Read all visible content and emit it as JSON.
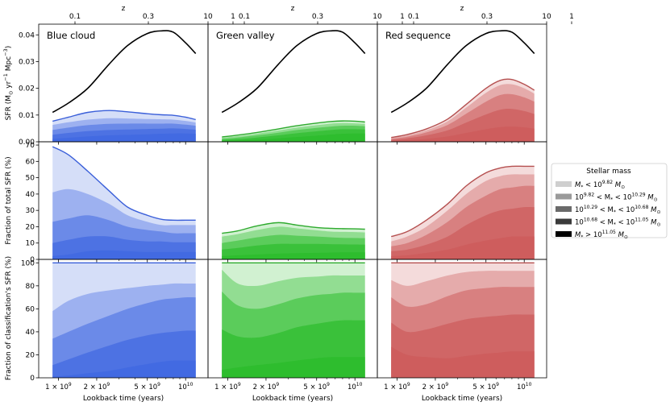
{
  "chart_data": {
    "type": "area",
    "figure": "Star formation history by classification and stellar mass",
    "x_axis": {
      "label": "Lookback time (years)",
      "scale": "log",
      "range": [
        700000000,
        15000000000
      ],
      "ticks": [
        1000000000,
        2000000000,
        5000000000,
        10000000000
      ],
      "tick_labels": [
        {
          "base": "1 × 10",
          "exp": "9"
        },
        {
          "base": "2 × 10",
          "exp": "9"
        },
        {
          "base": "5 × 10",
          "exp": "9"
        },
        {
          "base": "10",
          "exp": "10"
        }
      ]
    },
    "top_axis": {
      "label": "z",
      "ticks": [
        0.1,
        0.3,
        1,
        10
      ],
      "tick_labels": [
        "0.1",
        "0.3",
        "1",
        "10"
      ]
    },
    "x_grid": [
      900000000.0,
      1200000000.0,
      1700000000.0,
      2500000000.0,
      3500000000.0,
      5000000000.0,
      6500000000.0,
      8000000000.0,
      10000000000.0,
      12000000000.0
    ],
    "columns": [
      {
        "title": "Blue cloud",
        "fill": "#4169e1",
        "line": "#3a5fd9"
      },
      {
        "title": "Green valley",
        "fill": "#2ebd2e",
        "line": "#2eaa2e"
      },
      {
        "title": "Red sequence",
        "fill": "#cd5c5c",
        "line": "#b55050"
      }
    ],
    "rows": [
      {
        "ylabel_main": "SFR (M",
        "ylabel_sub": "⊙",
        "ylabel_rest": " yr",
        "ylabel_sup": "−1",
        "ylabel_end": " Mpc",
        "ylabel_sup2": "−3",
        "ylabel_close": ")",
        "ylim": [
          0,
          0.044
        ],
        "ticks": [
          0,
          0.01,
          0.02,
          0.03,
          0.04
        ],
        "tick_labels": [
          "0.00",
          "0.01",
          "0.02",
          "0.03",
          "0.04"
        ]
      },
      {
        "ylabel_main": "Fraction of total SFR (%)",
        "ylim": [
          0,
          72
        ],
        "ticks": [
          0,
          10,
          20,
          30,
          40,
          50,
          60,
          70
        ],
        "tick_labels": [
          "0",
          "10",
          "20",
          "30",
          "40",
          "50",
          "60",
          "70"
        ]
      },
      {
        "ylabel_main": "Fraction of classification's SFR (%)",
        "ylim": [
          0,
          103
        ],
        "ticks": [
          0,
          20,
          40,
          60,
          80,
          100
        ],
        "tick_labels": [
          "0",
          "20",
          "40",
          "60",
          "80",
          "100"
        ]
      }
    ],
    "cosmic_sfr": [
      0.011,
      0.0145,
      0.02,
      0.029,
      0.036,
      0.0405,
      0.0415,
      0.041,
      0.037,
      0.033
    ],
    "panels": [
      {
        "row": 0,
        "col": 0,
        "total": [
          0.0077,
          0.0092,
          0.011,
          0.0117,
          0.0112,
          0.0105,
          0.0101,
          0.0099,
          0.0092,
          0.0083
        ],
        "bands": [
          [
            0.0063,
            0.0073,
            0.0083,
            0.0088,
            0.0087,
            0.0085,
            0.0084,
            0.0083,
            0.0078,
            0.0072
          ],
          [
            0.0044,
            0.0053,
            0.0062,
            0.0067,
            0.0068,
            0.0068,
            0.0068,
            0.0068,
            0.0064,
            0.006
          ],
          [
            0.0026,
            0.0033,
            0.004,
            0.0044,
            0.0046,
            0.0048,
            0.0049,
            0.005,
            0.0048,
            0.0045
          ],
          [
            0.0011,
            0.0015,
            0.002,
            0.0024,
            0.0026,
            0.0028,
            0.003,
            0.0031,
            0.0031,
            0.003
          ]
        ]
      },
      {
        "row": 0,
        "col": 1,
        "total": [
          0.0018,
          0.0025,
          0.0035,
          0.0048,
          0.006,
          0.007,
          0.0076,
          0.0078,
          0.0077,
          0.0074
        ],
        "bands": [
          [
            0.0015,
            0.0021,
            0.003,
            0.0042,
            0.0053,
            0.0062,
            0.0068,
            0.007,
            0.0069,
            0.0067
          ],
          [
            0.0011,
            0.0016,
            0.0024,
            0.0034,
            0.0044,
            0.0052,
            0.0057,
            0.006,
            0.006,
            0.0058
          ],
          [
            0.0007,
            0.001,
            0.0016,
            0.0024,
            0.0032,
            0.0039,
            0.0044,
            0.0047,
            0.0047,
            0.0046
          ],
          [
            0.0003,
            0.0005,
            0.0008,
            0.0013,
            0.0018,
            0.0023,
            0.0027,
            0.003,
            0.0031,
            0.0031
          ]
        ]
      },
      {
        "row": 0,
        "col": 2,
        "total": [
          0.0016,
          0.0027,
          0.0048,
          0.0085,
          0.014,
          0.02,
          0.023,
          0.0233,
          0.0215,
          0.0193
        ],
        "bands": [
          [
            0.0014,
            0.0024,
            0.0043,
            0.0077,
            0.0128,
            0.0183,
            0.0212,
            0.0215,
            0.02,
            0.018
          ],
          [
            0.0011,
            0.0019,
            0.0035,
            0.0063,
            0.0105,
            0.015,
            0.0175,
            0.0178,
            0.0166,
            0.015
          ],
          [
            0.0007,
            0.0013,
            0.0024,
            0.0043,
            0.0072,
            0.0102,
            0.012,
            0.0123,
            0.0115,
            0.0104
          ],
          [
            0.0003,
            0.0006,
            0.0011,
            0.002,
            0.0033,
            0.0047,
            0.0055,
            0.0057,
            0.0054,
            0.0049
          ]
        ]
      },
      {
        "row": 1,
        "col": 0,
        "total": [
          69,
          64,
          54,
          42,
          32,
          27,
          24.5,
          24,
          24,
          24
        ],
        "bands": [
          [
            41,
            43,
            40,
            34,
            27,
            23,
            21,
            21,
            21,
            21
          ],
          [
            23,
            25,
            27,
            24,
            20,
            18,
            17,
            16,
            16,
            16
          ],
          [
            10,
            12,
            14,
            14,
            12,
            11,
            11,
            10.5,
            10.5,
            10.5
          ],
          [
            2,
            3,
            5,
            5.5,
            5,
            4.5,
            4.5,
            4.5,
            4.5,
            4.5
          ]
        ]
      },
      {
        "row": 1,
        "col": 1,
        "total": [
          16,
          17.5,
          20.5,
          22.5,
          21,
          19.5,
          19,
          18.8,
          18.7,
          18.5
        ],
        "bands": [
          [
            14,
            15.5,
            18,
            20,
            19,
            17.8,
            17,
            16.8,
            16.7,
            16.5
          ],
          [
            10,
            11.5,
            13.5,
            15,
            14.5,
            14,
            13.5,
            13.2,
            13.1,
            13
          ],
          [
            6,
            7,
            8.5,
            9.5,
            9.5,
            9.5,
            9.3,
            9.2,
            9.1,
            9
          ],
          [
            2,
            2.5,
            3,
            3.5,
            3.8,
            4,
            4.2,
            4.3,
            4.3,
            4.3
          ]
        ]
      },
      {
        "row": 1,
        "col": 2,
        "total": [
          14,
          17,
          24,
          34,
          45,
          53,
          56,
          57,
          57,
          57
        ],
        "bands": [
          [
            11,
            14,
            20,
            30,
            40,
            48,
            51,
            52,
            52,
            52
          ],
          [
            8,
            10,
            15,
            23,
            32,
            39,
            43,
            44,
            45,
            45
          ],
          [
            5,
            6,
            9,
            14,
            21,
            27,
            30,
            31,
            32,
            32
          ],
          [
            2,
            2.5,
            4,
            6,
            9,
            11.5,
            13,
            14,
            14,
            14
          ]
        ]
      },
      {
        "row": 2,
        "col": 0,
        "total": [
          100,
          100,
          100,
          100,
          100,
          100,
          100,
          100,
          100,
          100
        ],
        "bands": [
          [
            58,
            67,
            73,
            76,
            78,
            80,
            81,
            82,
            82,
            82
          ],
          [
            34,
            40,
            47,
            54,
            60,
            65,
            68,
            69,
            70,
            70
          ],
          [
            11,
            16,
            22,
            28,
            33,
            37,
            39,
            40,
            41,
            41
          ],
          [
            1,
            2,
            4,
            6,
            9,
            12,
            14,
            15,
            15,
            15
          ]
        ]
      },
      {
        "row": 2,
        "col": 1,
        "total": [
          100,
          100,
          100,
          100,
          100,
          100,
          100,
          100,
          100,
          100
        ],
        "bands": [
          [
            94,
            82,
            80,
            84,
            87,
            88,
            89,
            89,
            89,
            89
          ],
          [
            75,
            63,
            60,
            64,
            69,
            72,
            73,
            74,
            74,
            74
          ],
          [
            42,
            36,
            35,
            39,
            44,
            47,
            49,
            50,
            50,
            50
          ],
          [
            7,
            9,
            11,
            13,
            15,
            17,
            18,
            18,
            18,
            18
          ]
        ]
      },
      {
        "row": 2,
        "col": 2,
        "total": [
          100,
          100,
          100,
          100,
          100,
          100,
          100,
          100,
          100,
          100
        ],
        "bands": [
          [
            85,
            80,
            84,
            89,
            92,
            93,
            93,
            93,
            93,
            93
          ],
          [
            70,
            62,
            64,
            71,
            76,
            78,
            79,
            79,
            79,
            79
          ],
          [
            48,
            40,
            42,
            47,
            51,
            53,
            54,
            55,
            55,
            55
          ],
          [
            27,
            20,
            18,
            17,
            19,
            21,
            22,
            23,
            23,
            23
          ]
        ]
      }
    ],
    "legend": {
      "title": "Stellar mass",
      "placement": "right, middle row",
      "entries": [
        {
          "pre": "M",
          "sub": "*",
          "mid": " < 10",
          "sup": "9.82",
          "post": " M",
          "post_sub": "⊙",
          "color": "#cfcfcf"
        },
        {
          "pre": "10",
          "sup0": "9.82",
          "mid0": " < M",
          "sub": "*",
          "mid": " < 10",
          "sup": "10.29",
          "post": " M",
          "post_sub": "⊙",
          "color": "#9a9a9a"
        },
        {
          "pre": "10",
          "sup0": "10.29",
          "mid0": " < M",
          "sub": "*",
          "mid": " < 10",
          "sup": "10.68",
          "post": " M",
          "post_sub": "⊙",
          "color": "#6a6a6a"
        },
        {
          "pre": "10",
          "sup0": "10.68",
          "mid0": " < M",
          "sub": "*",
          "mid": " < 10",
          "sup": "11.05",
          "post": " M",
          "post_sub": "⊙",
          "color": "#3a3a3a"
        },
        {
          "pre": "M",
          "sub": "*",
          "mid": " > 10",
          "sup": "11.05",
          "post": " M",
          "post_sub": "⊙",
          "color": "#000000"
        }
      ]
    },
    "band_alphas": [
      0.22,
      0.38,
      0.55,
      0.72,
      0.9
    ]
  }
}
